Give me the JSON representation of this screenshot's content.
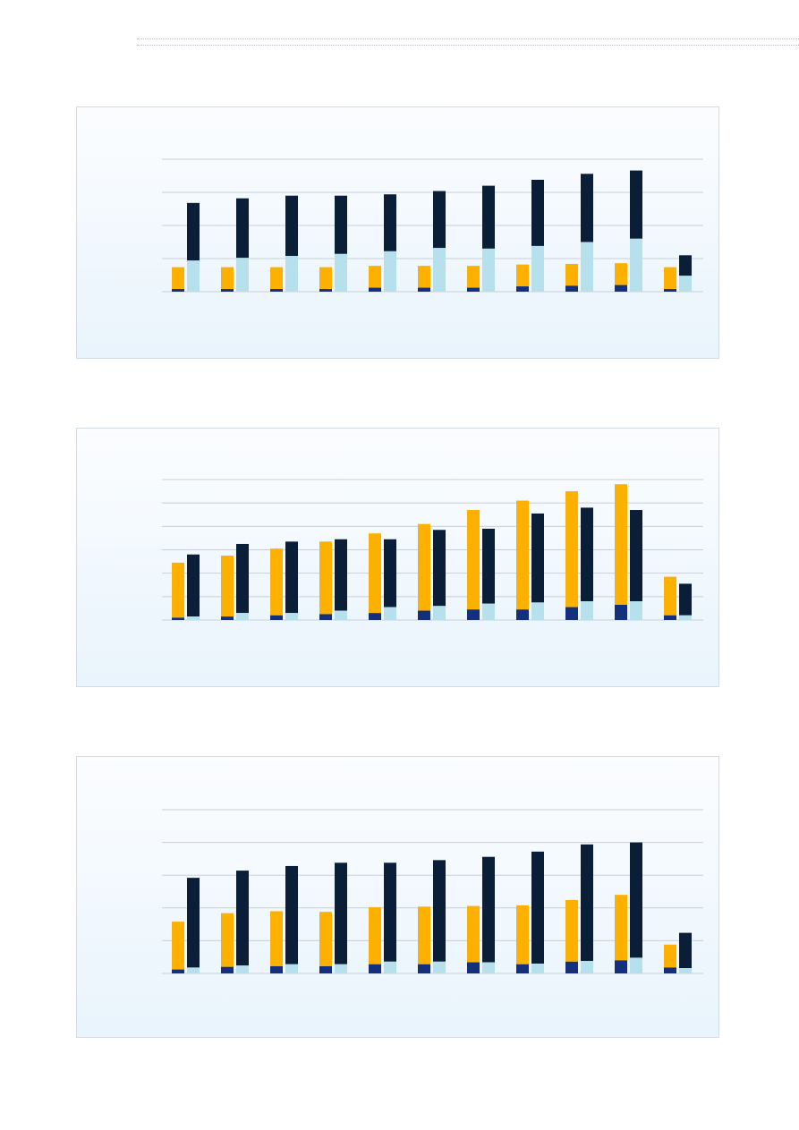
{
  "colors": {
    "series_a": "#fcb000",
    "series_b": "#14307c",
    "series_c": "#b5e0ec",
    "series_d": "#0a1e38",
    "grid": "#c8cfd8"
  },
  "chart_data": [
    {
      "type": "bar",
      "categories": [
        "",
        "",
        "",
        "",
        "",
        "",
        "",
        "",
        "",
        "",
        ""
      ],
      "ylim": [
        0,
        200
      ],
      "grid": true,
      "series": [
        {
          "values": [
            33,
            33,
            33,
            33,
            33,
            33,
            33,
            33,
            33,
            33,
            33
          ]
        },
        {
          "values": [
            4,
            4,
            4,
            4,
            6,
            6,
            6,
            8,
            9,
            10,
            4
          ]
        },
        {
          "values": [
            47,
            51,
            54,
            57,
            61,
            66,
            65,
            69,
            75,
            80,
            24
          ]
        },
        {
          "values": [
            87,
            90,
            91,
            88,
            86,
            86,
            95,
            100,
            103,
            103,
            31
          ]
        }
      ]
    },
    {
      "type": "bar",
      "categories": [
        "",
        "",
        "",
        "",
        "",
        "",
        "",
        "",
        "",
        "",
        ""
      ],
      "ylim": [
        0,
        120
      ],
      "grid": true,
      "series": [
        {
          "values": [
            47,
            52,
            57,
            62,
            68,
            74,
            85,
            93,
            99,
            103,
            33
          ]
        },
        {
          "values": [
            2,
            3,
            4,
            5,
            6,
            8,
            9,
            9,
            11,
            13,
            4
          ]
        },
        {
          "values": [
            3,
            6,
            6,
            8,
            11,
            12,
            14,
            15,
            16,
            16,
            4
          ]
        },
        {
          "values": [
            53,
            59,
            61,
            61,
            58,
            65,
            64,
            76,
            80,
            78,
            27
          ]
        }
      ]
    },
    {
      "type": "bar",
      "categories": [
        "",
        "",
        "",
        "",
        "",
        "",
        "",
        "",
        "",
        "",
        ""
      ],
      "ylim": [
        0,
        250
      ],
      "grid": true,
      "series": [
        {
          "values": [
            73,
            82,
            84,
            83,
            87,
            88,
            86,
            90,
            94,
            100,
            35
          ]
        },
        {
          "values": [
            6,
            10,
            11,
            11,
            14,
            14,
            17,
            14,
            18,
            20,
            9
          ]
        },
        {
          "values": [
            9,
            12,
            14,
            14,
            18,
            18,
            17,
            15,
            19,
            24,
            8
          ]
        },
        {
          "values": [
            137,
            145,
            150,
            155,
            151,
            155,
            161,
            171,
            178,
            176,
            54
          ]
        }
      ]
    }
  ]
}
